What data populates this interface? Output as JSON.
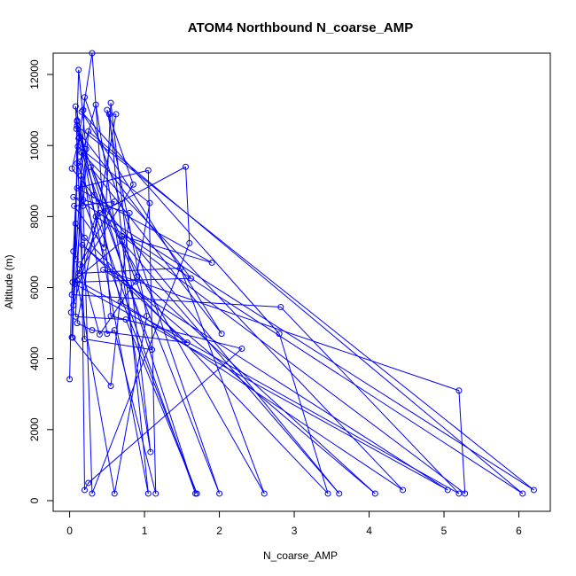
{
  "chart_data": {
    "type": "scatter",
    "title": "ATOM4 Northbound N_coarse_AMP",
    "xlabel": "N_coarse_AMP",
    "ylabel": "Altitude (m)",
    "xlim": [
      -0.22,
      6.42
    ],
    "ylim": [
      -300,
      12600
    ],
    "xticks": [
      "0",
      "1",
      "2",
      "3",
      "4",
      "5",
      "6"
    ],
    "yticks": [
      "0",
      "2000",
      "4000",
      "6000",
      "8000",
      "10000",
      "12000"
    ],
    "grid": false,
    "legend": "none",
    "color": "#0000ff",
    "series": [
      {
        "points": [
          [
            0.0,
            3420
          ],
          [
            0.02,
            5300
          ],
          [
            0.05,
            7020
          ],
          [
            0.12,
            10200
          ],
          [
            0.18,
            11000
          ],
          [
            0.3,
            12600
          ],
          [
            0.55,
            5200
          ],
          [
            2.3,
            4280
          ],
          [
            0.25,
            500
          ],
          [
            0.2,
            300
          ],
          [
            0.15,
            9150
          ],
          [
            0.08,
            6800
          ],
          [
            0.1,
            10700
          ],
          [
            0.12,
            12130
          ],
          [
            0.22,
            9900
          ],
          [
            0.05,
            5500
          ],
          [
            0.4,
            8100
          ],
          [
            1.55,
            9400
          ],
          [
            1.6,
            7250
          ],
          [
            0.3,
            200
          ],
          [
            0.18,
            8300
          ],
          [
            0.25,
            10400
          ],
          [
            6.05,
            200
          ],
          [
            0.35,
            8000
          ],
          [
            0.07,
            6100
          ],
          [
            5.05,
            300
          ],
          [
            0.45,
            6500
          ],
          [
            5.2,
            3100
          ],
          [
            5.28,
            200
          ],
          [
            0.7,
            7450
          ],
          [
            1.9,
            6700
          ],
          [
            0.1,
            8800
          ],
          [
            1.05,
            9300
          ],
          [
            1.15,
            200
          ],
          [
            0.6,
            4800
          ],
          [
            0.5,
            4700
          ],
          [
            0.1,
            10550
          ],
          [
            6.2,
            300
          ],
          [
            0.05,
            8550
          ],
          [
            0.8,
            8100
          ],
          [
            0.55,
            3230
          ],
          [
            0.04,
            4590
          ],
          [
            0.1,
            9500
          ],
          [
            1.68,
            200
          ],
          [
            0.28,
            9390
          ],
          [
            2.03,
            4700
          ],
          [
            0.16,
            10950
          ],
          [
            2.8,
            4700
          ],
          [
            3.45,
            200
          ],
          [
            0.2,
            7400
          ],
          [
            0.08,
            7800
          ],
          [
            0.03,
            5800
          ],
          [
            2.82,
            5450
          ],
          [
            5.2,
            200
          ],
          [
            0.1,
            6200
          ],
          [
            0.6,
            200
          ],
          [
            1.03,
            5200
          ],
          [
            0.5,
            11000
          ],
          [
            0.85,
            8900
          ],
          [
            0.12,
            6400
          ],
          [
            1.48,
            6550
          ],
          [
            2.6,
            200
          ],
          [
            0.33,
            8600
          ],
          [
            0.08,
            11100
          ],
          [
            0.2,
            4550
          ],
          [
            1.1,
            4250
          ],
          [
            0.16,
            9800
          ],
          [
            4.45,
            300
          ],
          [
            0.68,
            5600
          ],
          [
            0.1,
            10680
          ],
          [
            1.05,
            200
          ],
          [
            0.53,
            10880
          ],
          [
            0.62,
            10880
          ],
          [
            0.1,
            5000
          ],
          [
            0.3,
            4800
          ],
          [
            1.57,
            4450
          ],
          [
            0.17,
            7200
          ],
          [
            4.08,
            200
          ],
          [
            0.9,
            6300
          ],
          [
            0.13,
            10230
          ],
          [
            0.03,
            9350
          ],
          [
            3.6,
            200
          ],
          [
            0.7,
            7300
          ],
          [
            0.04,
            6150
          ],
          [
            1.62,
            6260
          ],
          [
            0.09,
            10470
          ],
          [
            2.0,
            200
          ],
          [
            0.2,
            11360
          ],
          [
            0.08,
            5180
          ],
          [
            0.75,
            5100
          ],
          [
            1.7,
            200
          ],
          [
            0.18,
            8470
          ],
          [
            0.14,
            9550
          ],
          [
            0.35,
            11150
          ],
          [
            1.08,
            1370
          ],
          [
            0.55,
            11200
          ],
          [
            0.46,
            7130
          ],
          [
            0.06,
            8300
          ],
          [
            0.6,
            8420
          ],
          [
            0.14,
            6650
          ],
          [
            0.4,
            4680
          ],
          [
            0.88,
            6170
          ],
          [
            1.07,
            8380
          ],
          [
            0.11,
            9970
          ],
          [
            0.03,
            4600
          ]
        ]
      }
    ]
  }
}
